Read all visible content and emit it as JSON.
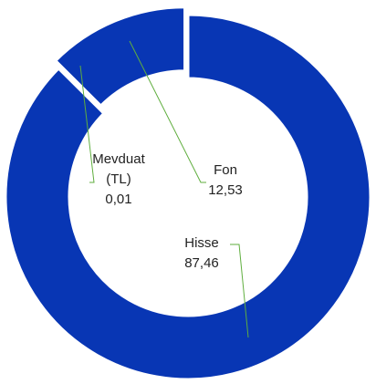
{
  "chart_data": {
    "type": "donut",
    "categories": [
      "Hisse",
      "Mevduat (TL)",
      "Fon"
    ],
    "values": [
      87.46,
      0.01,
      12.53
    ],
    "value_labels": [
      "87,46",
      "0,01",
      "12,53"
    ],
    "color": "#0836b4"
  }
}
